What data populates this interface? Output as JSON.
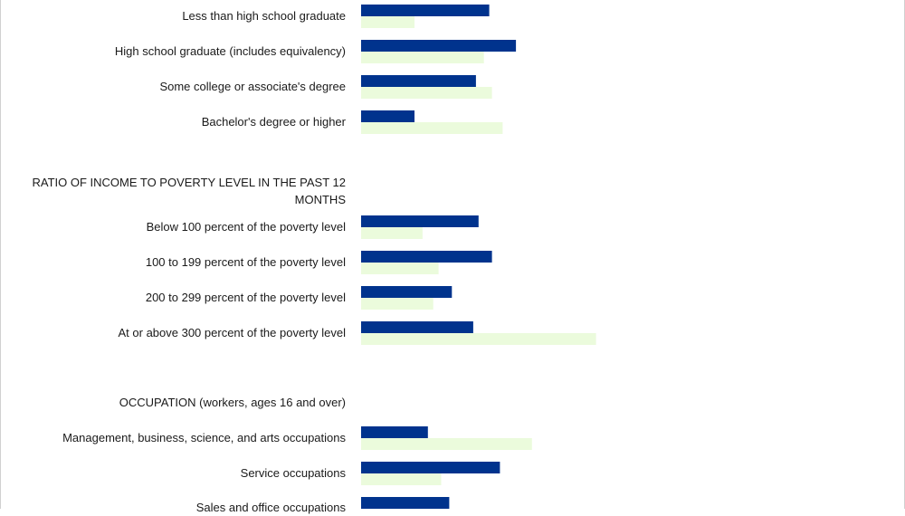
{
  "colors": {
    "series_a": "#00338d",
    "series_b": "#ebfbdc"
  },
  "chart_data": {
    "type": "bar",
    "orientation": "horizontal",
    "series": [
      {
        "values": [
          48,
          58,
          43,
          20,
          null,
          44,
          49,
          34,
          42,
          null,
          25,
          52,
          33
        ]
      },
      {
        "values": [
          20,
          46,
          49,
          53,
          null,
          23,
          29,
          27,
          88,
          null,
          64,
          30,
          null
        ]
      }
    ],
    "categories": [
      "Less than high school graduate",
      "High school graduate (includes equivalency)",
      "Some college or associate's degree",
      "Bachelor's degree or higher",
      "RATIO OF INCOME TO POVERTY LEVEL IN THE PAST 12 MONTHS",
      "Below 100 percent of the poverty level",
      "100 to 199 percent of the poverty level",
      "200 to 299 percent of the poverty level",
      "At or above 300 percent of the poverty level",
      "OCCUPATION (workers, ages 16 and over)",
      "Management, business, science, and arts occupations",
      "Service occupations",
      "Sales and office occupations"
    ],
    "xlabel": "",
    "ylabel": ""
  }
}
